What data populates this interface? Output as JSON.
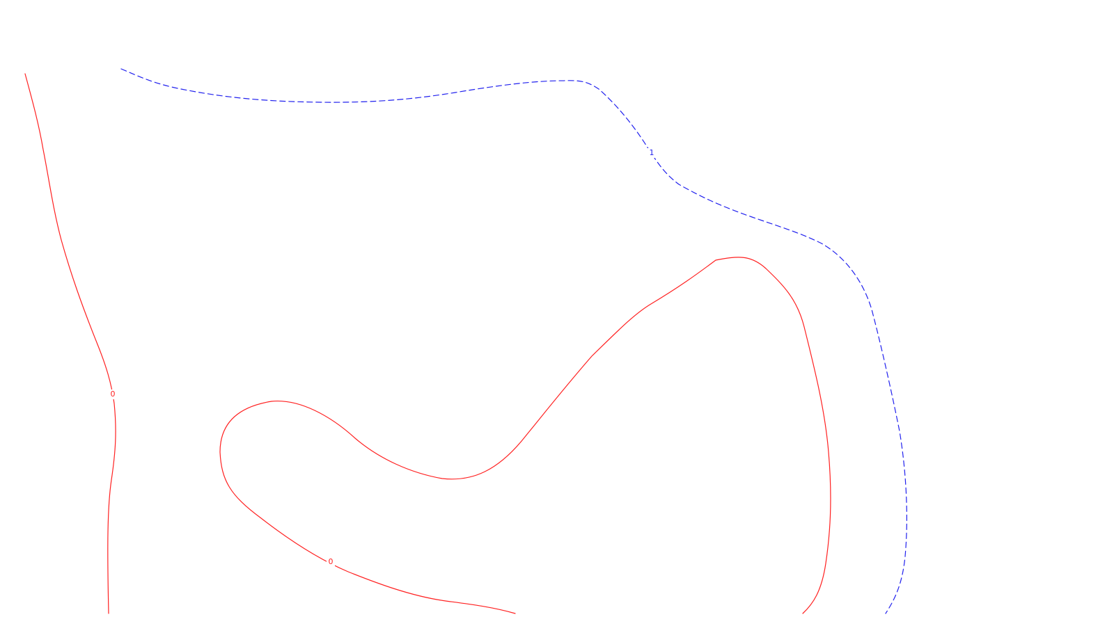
{
  "colors": {
    "background": "#ffffff",
    "contour_zero": "#ff2020",
    "contour_one": "#2020ee"
  },
  "contours": [
    {
      "name": "contour-level-0-left",
      "style": "solid",
      "color_key": "contour_zero",
      "label": "0"
    },
    {
      "name": "contour-level-0-loop",
      "style": "solid",
      "color_key": "contour_zero",
      "label": "0"
    },
    {
      "name": "contour-level-1",
      "style": "dashed",
      "color_key": "contour_one",
      "label": "1"
    }
  ]
}
